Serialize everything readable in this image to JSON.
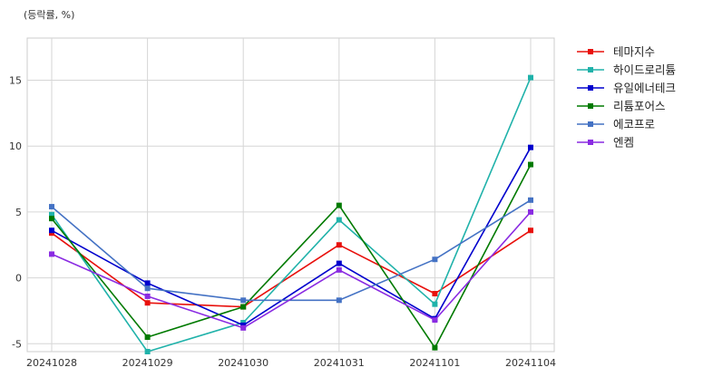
{
  "chart_data": {
    "type": "line",
    "unit_label": "(등락률, %)",
    "x": [
      "20241028",
      "20241029",
      "20241030",
      "20241031",
      "20241101",
      "20241104"
    ],
    "ylim": [
      -5.6,
      18.2
    ],
    "yticks": [
      -5,
      0,
      5,
      10,
      15
    ],
    "grid": true,
    "legend_position": "outside-right",
    "series": [
      {
        "name": "테마지수",
        "color": "#e8100c",
        "values": [
          3.4,
          -1.9,
          -2.2,
          2.5,
          -1.2,
          3.6
        ]
      },
      {
        "name": "하이드로리튬",
        "color": "#20b2aa",
        "values": [
          4.8,
          -5.6,
          -3.4,
          4.4,
          -2.0,
          15.2
        ]
      },
      {
        "name": "유일에너테크",
        "color": "#0000cd",
        "values": [
          3.6,
          -0.4,
          -3.6,
          1.1,
          -3.1,
          9.9
        ]
      },
      {
        "name": "리튬포어스",
        "color": "#007a00",
        "values": [
          4.5,
          -4.5,
          -2.2,
          5.5,
          -5.3,
          8.6
        ]
      },
      {
        "name": "에코프로",
        "color": "#4472c4",
        "values": [
          5.4,
          -0.8,
          -1.7,
          -1.7,
          1.4,
          5.9
        ]
      },
      {
        "name": "엔켐",
        "color": "#8a2be2",
        "values": [
          1.8,
          -1.4,
          -3.8,
          0.6,
          -3.2,
          5.0
        ]
      }
    ]
  }
}
